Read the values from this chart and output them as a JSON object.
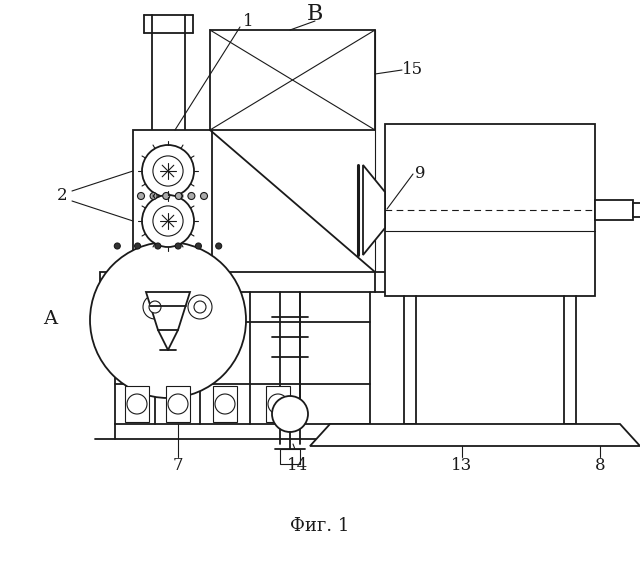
{
  "bg_color": "#ffffff",
  "line_color": "#1a1a1a",
  "lw": 1.3,
  "tlw": 0.8,
  "thk": 2.2,
  "fig_caption": "Фиг. 1"
}
